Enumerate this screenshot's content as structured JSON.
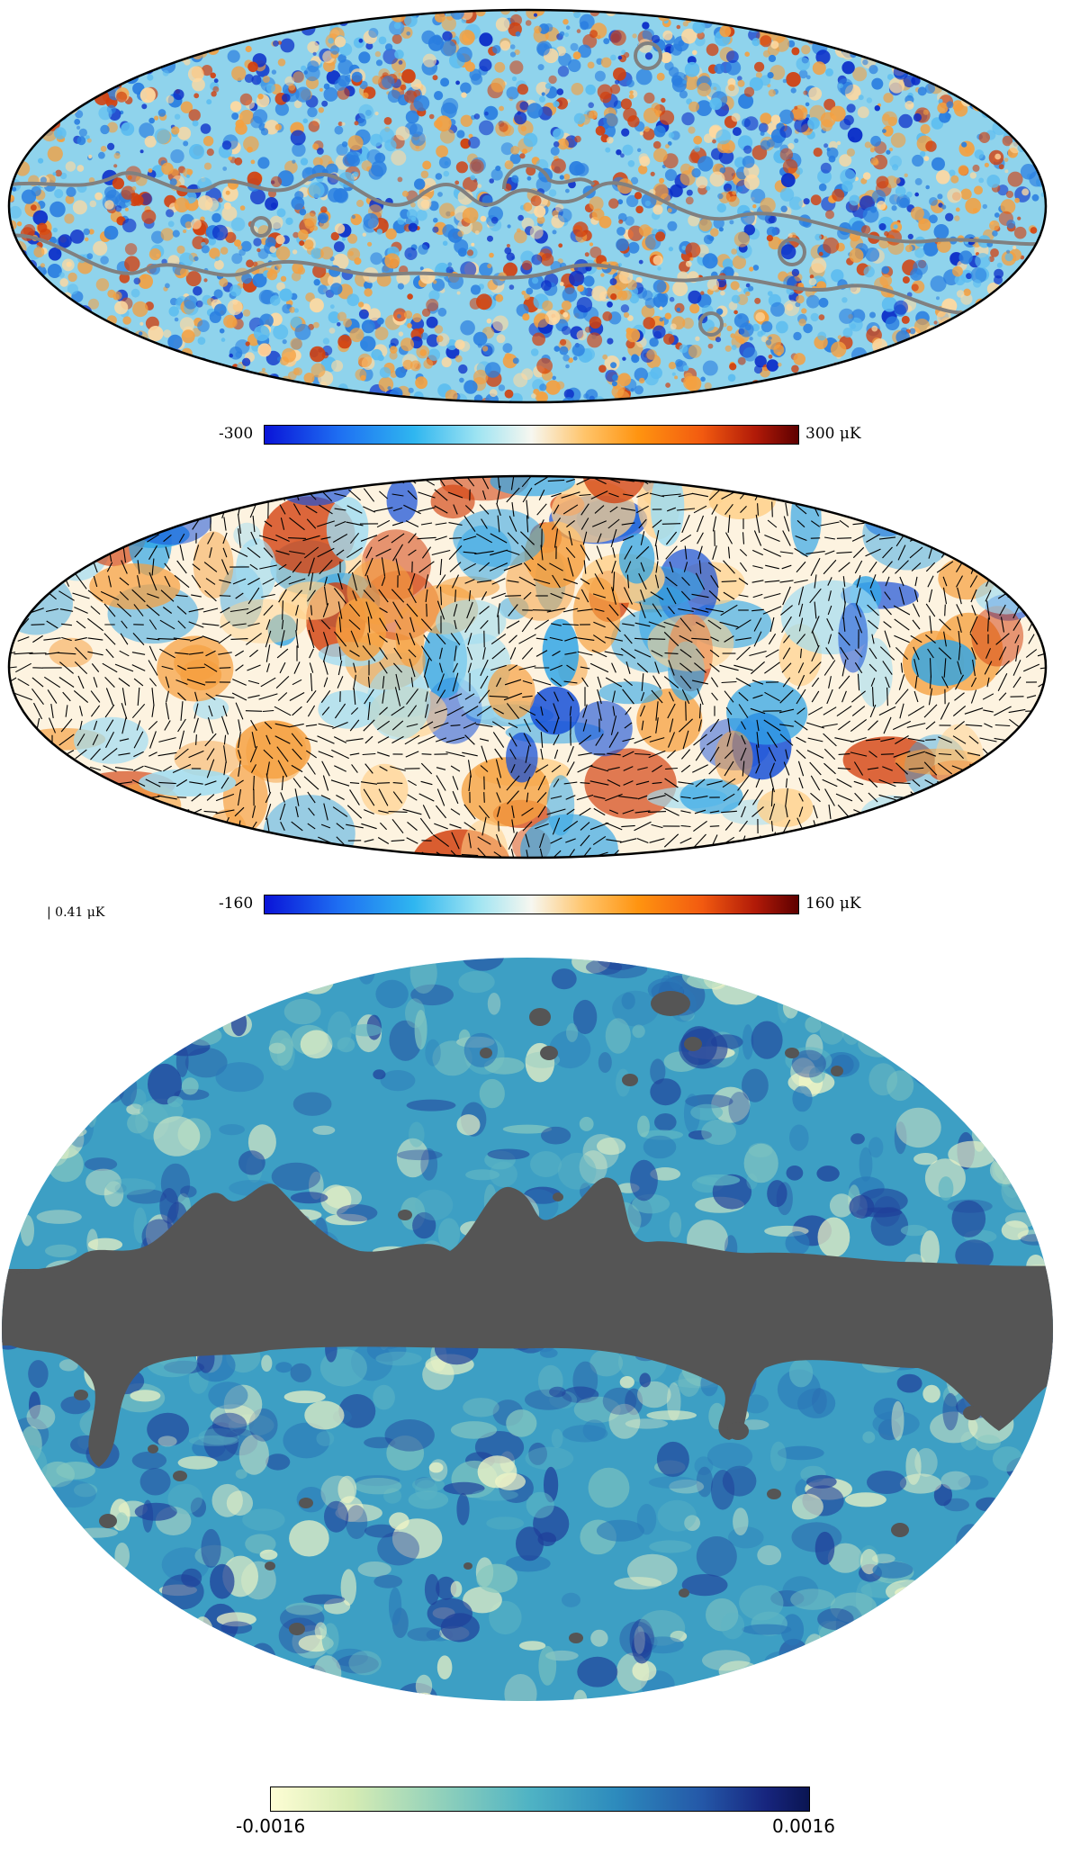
{
  "maps": [
    {
      "id": "temperature",
      "palette": {
        "base": "#8fd3ec",
        "warm": "#f4a040",
        "hot": "#d2400e",
        "cool": "#2a7ee0",
        "cold": "#0a2cc8",
        "mask_contour": "#808080"
      },
      "colorbar": {
        "min_label": "-300",
        "max_label": "300 μK"
      }
    },
    {
      "id": "polarization",
      "palette": {
        "base": "#fdf3e0",
        "warm": "#f5a040",
        "hot": "#d2400e",
        "cool": "#33a6e6",
        "cold": "#1650d8",
        "headless_vectors": "#000000"
      },
      "scale_label": "| 0.41 μK",
      "colorbar": {
        "min_label": "-160",
        "max_label": "160 μK"
      }
    },
    {
      "id": "masked",
      "palette": {
        "base": "#3d9fc4",
        "light": "#f4f7c6",
        "dark": "#1f3f9a",
        "mask": "#555555"
      },
      "colorbar": {
        "min_label": "-0.0016",
        "max_label": "0.0016"
      }
    }
  ]
}
